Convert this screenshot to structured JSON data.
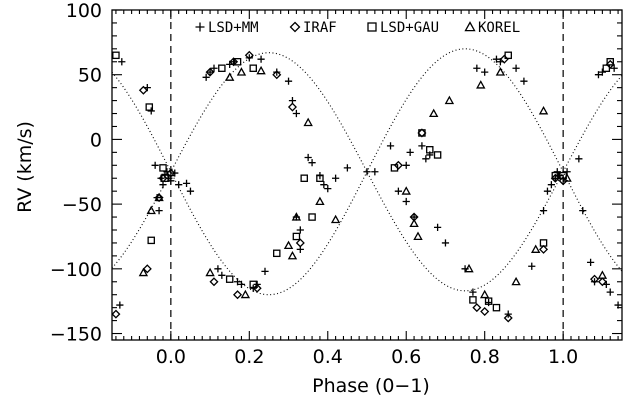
{
  "chart_data": {
    "type": "scatter",
    "xlabel": "Phase (0−1)",
    "ylabel": "RV (km/s)",
    "xlim": [
      -0.15,
      1.15
    ],
    "ylim": [
      -155,
      100
    ],
    "x_ticks": [
      0.0,
      0.2,
      0.4,
      0.6,
      0.8,
      1.0
    ],
    "x_tick_labels": [
      "0.0",
      "0.2",
      "0.4",
      "0.6",
      "0.8",
      "1.0"
    ],
    "y_ticks": [
      -150,
      -100,
      -50,
      0,
      50,
      100
    ],
    "y_tick_labels": [
      "−150",
      "−100",
      "−50",
      "0",
      "50",
      "100"
    ],
    "vertical_lines": [
      0.0,
      1.0
    ],
    "legend": [
      {
        "symbol": "plus",
        "label": "LSD+MM"
      },
      {
        "symbol": "diamond",
        "label": "IRAF"
      },
      {
        "symbol": "square",
        "label": "LSD+GAU"
      },
      {
        "symbol": "triangle",
        "label": "KOREL"
      }
    ],
    "legend_position": "top",
    "model_curves": {
      "gamma": -25,
      "primary_semi_amplitude": 95,
      "secondary_semi_amplitude": -92,
      "style": "dotted"
    },
    "series": [
      {
        "symbol": "plus",
        "points": [
          [
            -0.13,
            -128
          ],
          [
            -0.125,
            60
          ],
          [
            -0.06,
            40
          ],
          [
            -0.05,
            22
          ],
          [
            -0.04,
            -20
          ],
          [
            -0.035,
            -45
          ],
          [
            -0.03,
            -55
          ],
          [
            -0.025,
            -30
          ],
          [
            -0.02,
            -35
          ],
          [
            -0.015,
            -27
          ],
          [
            -0.01,
            -25
          ],
          [
            -0.005,
            -30
          ],
          [
            0.0,
            -28
          ],
          [
            0.0,
            -32
          ],
          [
            0.01,
            -26
          ],
          [
            0.02,
            -35
          ],
          [
            0.04,
            -34
          ],
          [
            0.05,
            -40
          ],
          [
            0.09,
            48
          ],
          [
            0.1,
            52
          ],
          [
            0.11,
            55
          ],
          [
            0.12,
            -100
          ],
          [
            0.13,
            -105
          ],
          [
            0.15,
            58
          ],
          [
            0.16,
            60
          ],
          [
            0.17,
            -110
          ],
          [
            0.18,
            -112
          ],
          [
            0.2,
            63
          ],
          [
            0.21,
            -115
          ],
          [
            0.22,
            -112
          ],
          [
            0.23,
            62
          ],
          [
            0.24,
            -102
          ],
          [
            0.27,
            52
          ],
          [
            0.3,
            45
          ],
          [
            0.31,
            30
          ],
          [
            0.32,
            20
          ],
          [
            0.32,
            -60
          ],
          [
            0.33,
            -70
          ],
          [
            0.33,
            -85
          ],
          [
            0.35,
            -14
          ],
          [
            0.36,
            -18
          ],
          [
            0.38,
            -28
          ],
          [
            0.39,
            -35
          ],
          [
            0.4,
            -38
          ],
          [
            0.42,
            -30
          ],
          [
            0.45,
            -22
          ],
          [
            0.5,
            -25
          ],
          [
            0.52,
            -25
          ],
          [
            0.56,
            -5
          ],
          [
            0.58,
            -40
          ],
          [
            0.6,
            -48
          ],
          [
            0.6,
            -20
          ],
          [
            0.61,
            -10
          ],
          [
            0.62,
            -60
          ],
          [
            0.64,
            -5
          ],
          [
            0.65,
            -15
          ],
          [
            0.66,
            -12
          ],
          [
            0.68,
            -68
          ],
          [
            0.7,
            -80
          ],
          [
            0.75,
            -100
          ],
          [
            0.77,
            -118
          ],
          [
            0.78,
            55
          ],
          [
            0.8,
            52
          ],
          [
            0.81,
            -126
          ],
          [
            0.83,
            62
          ],
          [
            0.84,
            60
          ],
          [
            0.86,
            -135
          ],
          [
            0.88,
            55
          ],
          [
            0.9,
            45
          ],
          [
            0.92,
            -98
          ],
          [
            0.95,
            -55
          ],
          [
            0.96,
            -40
          ],
          [
            0.97,
            -35
          ],
          [
            0.98,
            -30
          ],
          [
            0.985,
            -25
          ],
          [
            0.99,
            -28
          ],
          [
            1.0,
            -30
          ],
          [
            1.01,
            -25
          ],
          [
            1.04,
            -15
          ],
          [
            1.05,
            -55
          ],
          [
            1.07,
            -95
          ],
          [
            1.08,
            -110
          ],
          [
            1.09,
            50
          ],
          [
            1.1,
            52
          ],
          [
            1.11,
            -112
          ],
          [
            1.12,
            -118
          ],
          [
            1.13,
            55
          ],
          [
            1.14,
            -128
          ]
        ]
      },
      {
        "symbol": "diamond",
        "points": [
          [
            -0.14,
            -135
          ],
          [
            -0.07,
            38
          ],
          [
            -0.06,
            -100
          ],
          [
            -0.03,
            -45
          ],
          [
            -0.02,
            -30
          ],
          [
            0.0,
            -26
          ],
          [
            0.1,
            52
          ],
          [
            0.11,
            -110
          ],
          [
            0.16,
            60
          ],
          [
            0.17,
            -120
          ],
          [
            0.2,
            65
          ],
          [
            0.22,
            -115
          ],
          [
            0.27,
            50
          ],
          [
            0.31,
            25
          ],
          [
            0.33,
            -80
          ],
          [
            0.58,
            -20
          ],
          [
            0.62,
            -60
          ],
          [
            0.64,
            5
          ],
          [
            0.78,
            -130
          ],
          [
            0.8,
            -133
          ],
          [
            0.85,
            62
          ],
          [
            0.86,
            -138
          ],
          [
            0.95,
            -85
          ],
          [
            0.98,
            -30
          ],
          [
            1.0,
            -32
          ],
          [
            1.08,
            -108
          ],
          [
            1.1,
            -110
          ],
          [
            1.12,
            58
          ]
        ]
      },
      {
        "symbol": "square",
        "points": [
          [
            -0.14,
            65
          ],
          [
            -0.055,
            25
          ],
          [
            -0.05,
            -78
          ],
          [
            -0.02,
            -22
          ],
          [
            -0.015,
            -30
          ],
          [
            0.13,
            55
          ],
          [
            0.15,
            -108
          ],
          [
            0.17,
            60
          ],
          [
            0.21,
            55
          ],
          [
            0.21,
            -112
          ],
          [
            0.27,
            -88
          ],
          [
            0.32,
            -75
          ],
          [
            0.34,
            -30
          ],
          [
            0.36,
            -60
          ],
          [
            0.38,
            -30
          ],
          [
            0.57,
            -22
          ],
          [
            0.64,
            5
          ],
          [
            0.66,
            -8
          ],
          [
            0.68,
            -12
          ],
          [
            0.77,
            -124
          ],
          [
            0.81,
            -125
          ],
          [
            0.83,
            -130
          ],
          [
            0.86,
            65
          ],
          [
            0.95,
            -80
          ],
          [
            0.98,
            -28
          ],
          [
            1.0,
            -28
          ],
          [
            1.11,
            55
          ],
          [
            1.12,
            60
          ]
        ]
      },
      {
        "symbol": "triangle",
        "points": [
          [
            -0.07,
            -103
          ],
          [
            -0.05,
            -55
          ],
          [
            -0.03,
            -45
          ],
          [
            0.1,
            -103
          ],
          [
            0.15,
            48
          ],
          [
            0.18,
            52
          ],
          [
            0.19,
            -120
          ],
          [
            0.23,
            53
          ],
          [
            0.3,
            -82
          ],
          [
            0.31,
            -90
          ],
          [
            0.32,
            -60
          ],
          [
            0.35,
            13
          ],
          [
            0.38,
            -48
          ],
          [
            0.42,
            -62
          ],
          [
            0.6,
            -40
          ],
          [
            0.62,
            -65
          ],
          [
            0.63,
            -75
          ],
          [
            0.67,
            20
          ],
          [
            0.71,
            30
          ],
          [
            0.76,
            -100
          ],
          [
            0.79,
            42
          ],
          [
            0.8,
            -120
          ],
          [
            0.84,
            52
          ],
          [
            0.88,
            -110
          ],
          [
            0.93,
            -85
          ],
          [
            0.95,
            22
          ],
          [
            1.01,
            -30
          ],
          [
            1.1,
            -105
          ]
        ]
      }
    ]
  }
}
